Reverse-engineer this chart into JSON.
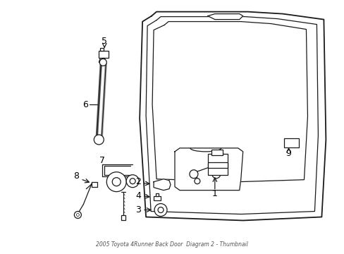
{
  "title": "2005 Toyota 4Runner Back Door  Diagram 2 - Thumbnail",
  "bg_color": "#ffffff",
  "line_color": "#1a1a1a",
  "label_color": "#000000",
  "figsize": [
    4.89,
    3.6
  ],
  "dpi": 100
}
